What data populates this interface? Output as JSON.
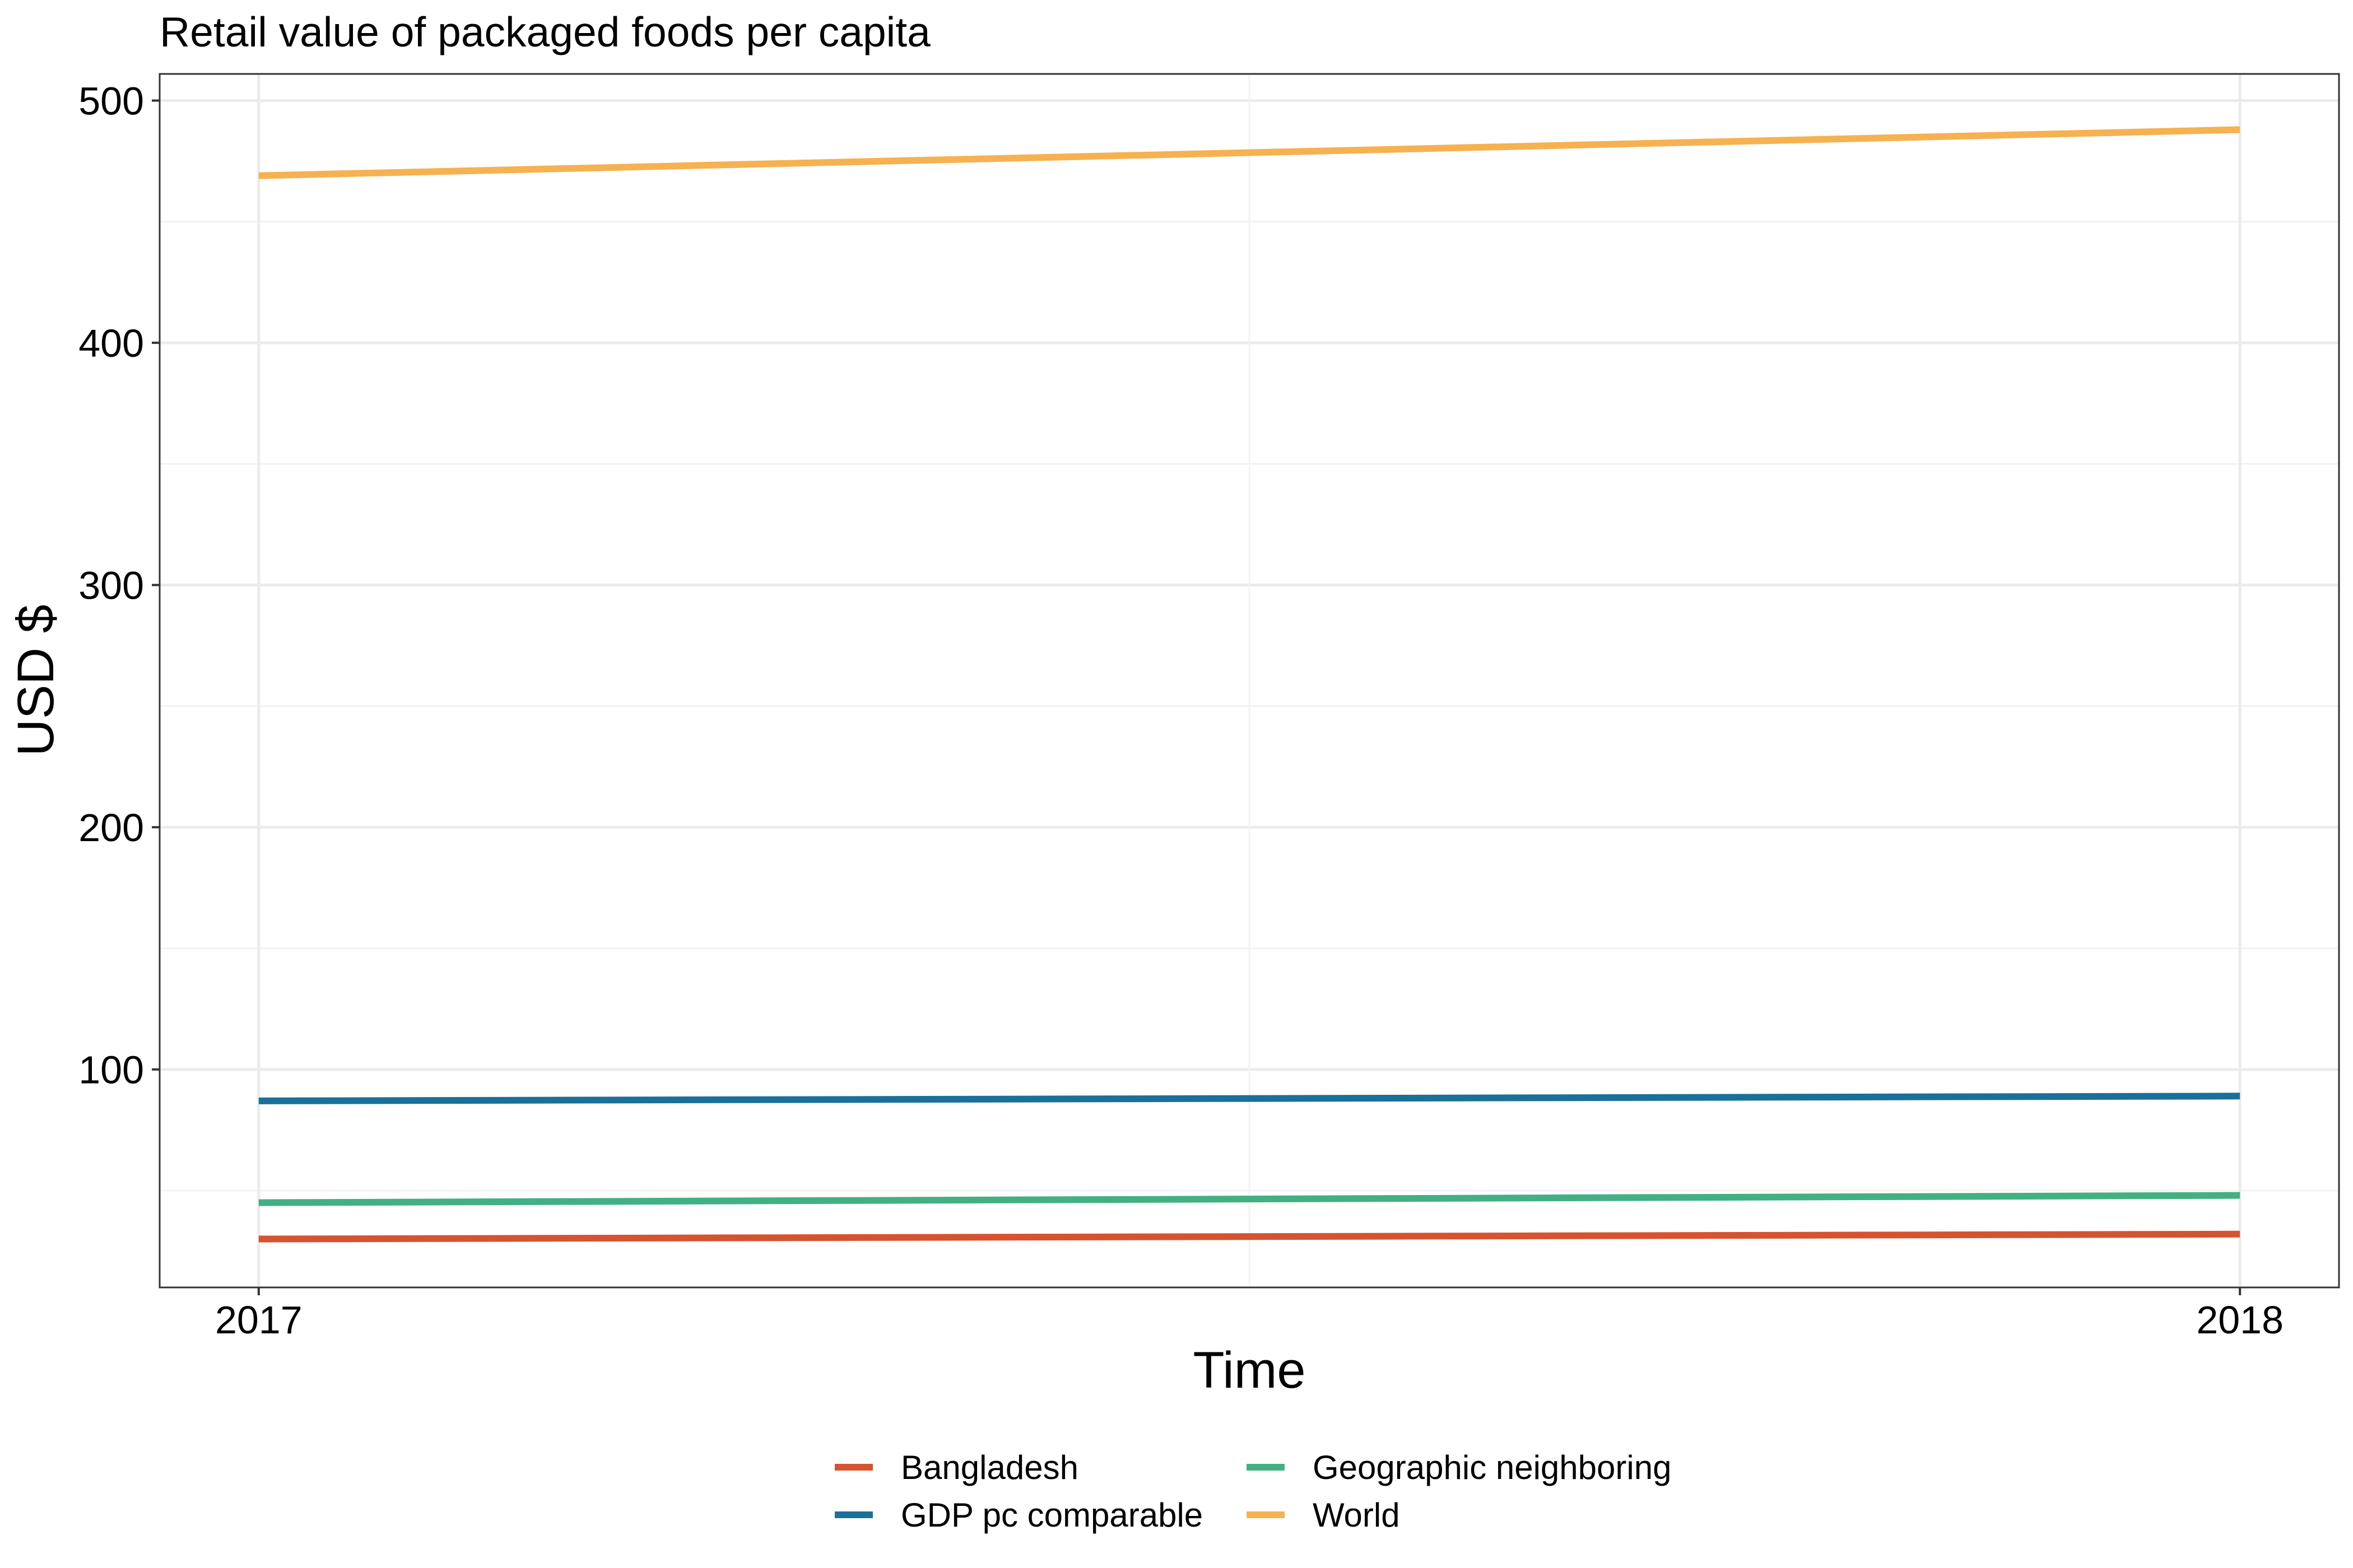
{
  "chart_data": {
    "type": "line",
    "title": "Retail value of packaged foods per capita",
    "xlabel": "Time",
    "ylabel": "USD $",
    "x": [
      2017,
      2018
    ],
    "xlim": [
      2016.95,
      2018.05
    ],
    "ylim": [
      10,
      511
    ],
    "x_ticks": [
      {
        "value": 2017,
        "label": "2017"
      },
      {
        "value": 2018,
        "label": "2018"
      }
    ],
    "y_ticks": [
      {
        "value": 100,
        "label": "100"
      },
      {
        "value": 200,
        "label": "200"
      },
      {
        "value": 300,
        "label": "300"
      },
      {
        "value": 400,
        "label": "400"
      },
      {
        "value": 500,
        "label": "500"
      }
    ],
    "grid": true,
    "legend_position": "bottom",
    "series": [
      {
        "name": "Bangladesh",
        "color": "#d65330",
        "values": [
          30,
          32
        ]
      },
      {
        "name": "GDP pc comparable",
        "color": "#1a7099",
        "values": [
          87,
          89
        ]
      },
      {
        "name": "Geographic neighboring",
        "color": "#42b083",
        "values": [
          45,
          48
        ]
      },
      {
        "name": "World",
        "color": "#f6b151",
        "values": [
          469,
          488
        ]
      }
    ]
  }
}
